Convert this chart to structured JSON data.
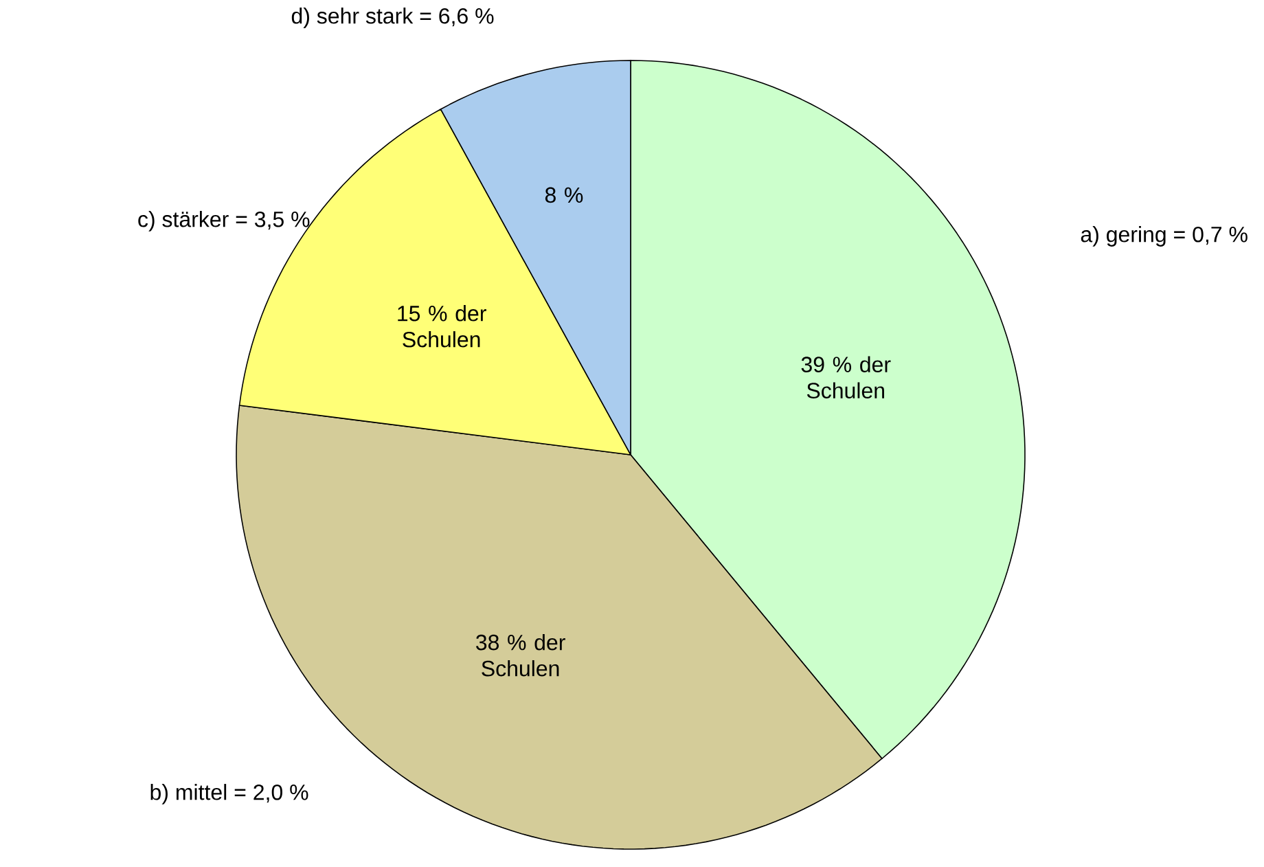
{
  "chart_data": {
    "type": "pie",
    "categories": [
      "a) gering = 0,7 %",
      "b) mittel = 2,0 %",
      "c) stärker = 3,5 %",
      "d) sehr stark = 6,6 %"
    ],
    "values": [
      39,
      38,
      15,
      8
    ],
    "colors": [
      "#ccffcc",
      "#d4cc99",
      "#ffff77",
      "#aaccee"
    ],
    "value_labels": [
      "39 % der Schulen",
      "38 % der Schulen",
      "15 % der Schulen",
      "8 %"
    ]
  }
}
